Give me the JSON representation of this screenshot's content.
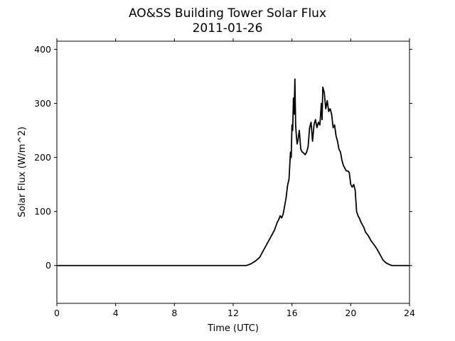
{
  "chart_data": {
    "type": "line",
    "title": "AO&SS Building Tower Solar Flux",
    "subtitle": "2011-01-26",
    "xlabel": "Time (UTC)",
    "ylabel": "Solar Flux (W/m^2)",
    "xlim": [
      0,
      24
    ],
    "ylim": [
      -70,
      415
    ],
    "xticks": [
      0,
      4,
      8,
      12,
      16,
      20,
      24
    ],
    "yticks": [
      0,
      100,
      200,
      300,
      400
    ],
    "grid": false,
    "legend": "none",
    "line_color": "#000000",
    "series": [
      {
        "x": [
          0,
          6,
          12.9,
          13.2,
          13.5,
          13.8,
          14.0,
          14.2,
          14.4,
          14.6,
          14.8,
          15.0,
          15.1,
          15.2,
          15.3,
          15.4,
          15.5,
          15.6,
          15.7,
          15.8,
          15.9,
          15.95,
          16.0,
          16.05,
          16.1,
          16.15,
          16.2,
          16.25,
          16.3,
          16.35,
          16.4,
          16.5,
          16.6,
          16.7,
          16.8,
          16.9,
          17.0,
          17.1,
          17.2,
          17.3,
          17.4,
          17.5,
          17.6,
          17.7,
          17.8,
          17.9,
          18.0,
          18.05,
          18.1,
          18.2,
          18.3,
          18.4,
          18.5,
          18.6,
          18.7,
          18.8,
          18.9,
          19.0,
          19.1,
          19.2,
          19.3,
          19.4,
          19.5,
          19.6,
          19.7,
          19.8,
          19.9,
          20.0,
          20.1,
          20.2,
          20.3,
          20.4,
          20.5,
          20.6,
          20.7,
          20.8,
          20.9,
          21.0,
          21.2,
          21.4,
          21.6,
          21.8,
          22.0,
          22.2,
          22.4,
          22.6,
          22.8,
          23.0,
          23.2,
          23.5,
          24.0
        ],
        "y": [
          0,
          0,
          0,
          3,
          8,
          15,
          25,
          35,
          45,
          55,
          65,
          80,
          85,
          92,
          88,
          95,
          110,
          125,
          148,
          160,
          210,
          200,
          260,
          250,
          310,
          280,
          345,
          260,
          240,
          225,
          230,
          250,
          215,
          210,
          208,
          205,
          210,
          220,
          255,
          265,
          230,
          260,
          270,
          255,
          265,
          260,
          300,
          270,
          330,
          320,
          290,
          305,
          285,
          290,
          280,
          255,
          260,
          240,
          230,
          215,
          210,
          195,
          185,
          180,
          175,
          175,
          172,
          150,
          145,
          150,
          140,
          100,
          92,
          87,
          80,
          75,
          70,
          62,
          55,
          45,
          38,
          30,
          20,
          10,
          5,
          2,
          0,
          0,
          0,
          0,
          0
        ]
      }
    ]
  }
}
